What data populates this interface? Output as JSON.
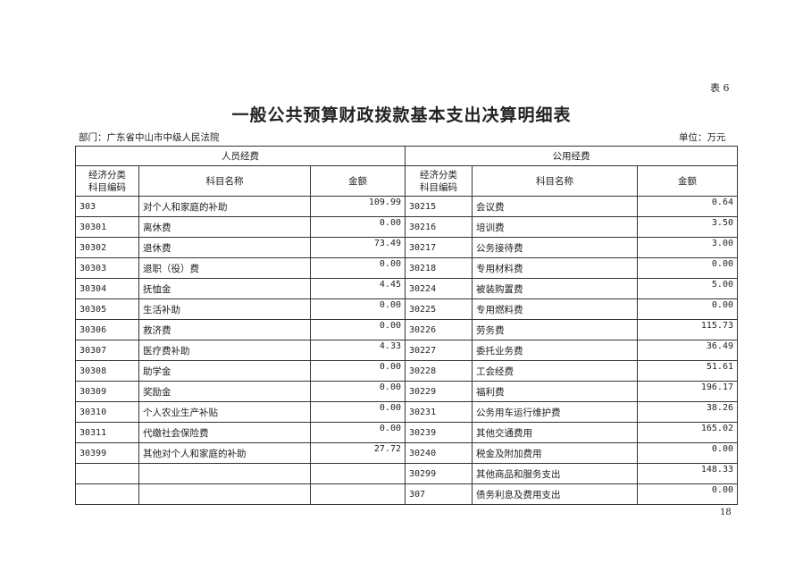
{
  "table_label": "表 6",
  "title": "一般公共预算财政拨款基本支出决算明细表",
  "department": "部门：广东省中山市中级人民法院",
  "unit": "单位：万元",
  "page_number": "18",
  "headers": {
    "personnel": "人员经费",
    "public": "公用经费",
    "code_line1": "经济分类",
    "code_line2": "科目编码",
    "name": "科目名称",
    "amount": "金额"
  },
  "personnel_rows": [
    {
      "code": "303",
      "name": "对个人和家庭的补助",
      "amount": "109.99"
    },
    {
      "code": "30301",
      "name": "离休费",
      "amount": "0.00"
    },
    {
      "code": "30302",
      "name": "退休费",
      "amount": "73.49"
    },
    {
      "code": "30303",
      "name": "退职（役）费",
      "amount": "0.00"
    },
    {
      "code": "30304",
      "name": "抚恤金",
      "amount": "4.45"
    },
    {
      "code": "30305",
      "name": "生活补助",
      "amount": "0.00"
    },
    {
      "code": "30306",
      "name": "救济费",
      "amount": "0.00"
    },
    {
      "code": "30307",
      "name": "医疗费补助",
      "amount": "4.33"
    },
    {
      "code": "30308",
      "name": "助学金",
      "amount": "0.00"
    },
    {
      "code": "30309",
      "name": "奖励金",
      "amount": "0.00"
    },
    {
      "code": "30310",
      "name": "个人农业生产补贴",
      "amount": "0.00"
    },
    {
      "code": "30311",
      "name": "代缴社会保险费",
      "amount": "0.00"
    },
    {
      "code": "30399",
      "name": "其他对个人和家庭的补助",
      "amount": "27.72"
    },
    {
      "code": "",
      "name": "",
      "amount": ""
    },
    {
      "code": "",
      "name": "",
      "amount": ""
    }
  ],
  "public_rows": [
    {
      "code": "30215",
      "name": "会议费",
      "amount": "0.64"
    },
    {
      "code": "30216",
      "name": "培训费",
      "amount": "3.50"
    },
    {
      "code": "30217",
      "name": "公务接待费",
      "amount": "3.00"
    },
    {
      "code": "30218",
      "name": "专用材料费",
      "amount": "0.00"
    },
    {
      "code": "30224",
      "name": "被装购置费",
      "amount": "5.00"
    },
    {
      "code": "30225",
      "name": "专用燃料费",
      "amount": "0.00"
    },
    {
      "code": "30226",
      "name": "劳务费",
      "amount": "115.73"
    },
    {
      "code": "30227",
      "name": "委托业务费",
      "amount": "36.49"
    },
    {
      "code": "30228",
      "name": "工会经费",
      "amount": "51.61"
    },
    {
      "code": "30229",
      "name": "福利费",
      "amount": "196.17"
    },
    {
      "code": "30231",
      "name": "公务用车运行维护费",
      "amount": "38.26"
    },
    {
      "code": "30239",
      "name": "其他交通费用",
      "amount": "165.02"
    },
    {
      "code": "30240",
      "name": "税金及附加费用",
      "amount": "0.00"
    },
    {
      "code": "30299",
      "name": "其他商品和服务支出",
      "amount": "148.33"
    },
    {
      "code": "307",
      "name": "债务利息及费用支出",
      "amount": "0.00"
    }
  ]
}
